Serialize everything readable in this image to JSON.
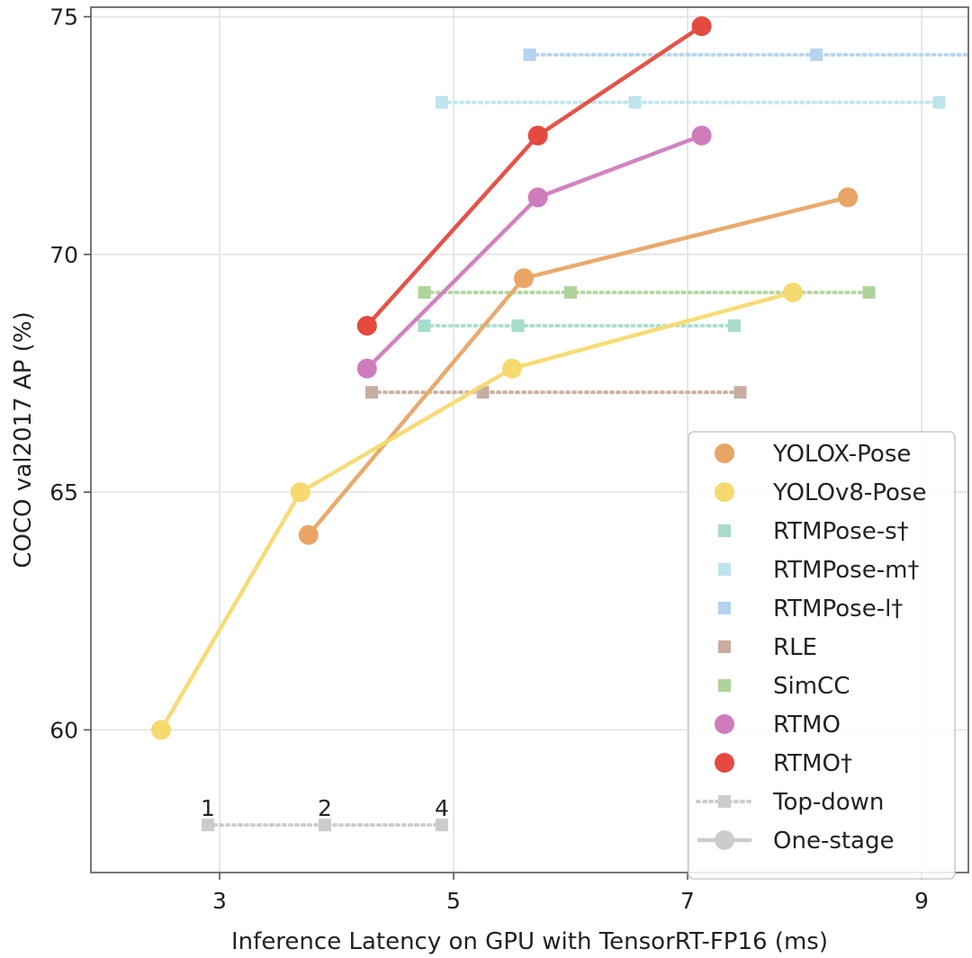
{
  "chart_data": {
    "type": "line",
    "title": "",
    "xlabel": "Inference Latency on GPU with TensorRT-FP16 (ms)",
    "ylabel": "COCO val2017 AP (%)",
    "xlim": [
      1.9,
      9.4
    ],
    "ylim": [
      57.0,
      75.2
    ],
    "xticks": [
      3,
      5,
      7,
      9
    ],
    "yticks": [
      60,
      65,
      70,
      75
    ],
    "grid": true,
    "legend_position": "lower-right",
    "series": [
      {
        "name": "YOLOX-Pose",
        "kind": "one-stage",
        "color": "#e8a565",
        "points": [
          [
            3.76,
            64.1
          ],
          [
            5.6,
            69.5
          ],
          [
            8.37,
            71.2
          ]
        ]
      },
      {
        "name": "YOLOv8-Pose",
        "kind": "one-stage",
        "color": "#f6da6f",
        "points": [
          [
            2.5,
            60.0
          ],
          [
            3.69,
            65.0
          ],
          [
            5.5,
            67.6
          ],
          [
            7.9,
            69.2
          ]
        ]
      },
      {
        "name": "RTMPose-s†",
        "kind": "top-down",
        "color": "#a8dccb",
        "points": [
          [
            4.75,
            68.5
          ],
          [
            5.55,
            68.5
          ],
          [
            7.4,
            68.5
          ]
        ]
      },
      {
        "name": "RTMPose-m†",
        "kind": "top-down",
        "color": "#bde5ec",
        "points": [
          [
            4.9,
            73.2
          ],
          [
            6.55,
            73.2
          ],
          [
            9.15,
            73.2
          ]
        ]
      },
      {
        "name": "RTMPose-l†",
        "kind": "top-down",
        "color": "#b5d3ef",
        "points": [
          [
            5.65,
            74.2
          ],
          [
            8.1,
            74.2
          ],
          [
            9.5,
            74.2
          ]
        ]
      },
      {
        "name": "RLE",
        "kind": "top-down",
        "color": "#c8ada0",
        "points": [
          [
            4.3,
            67.1
          ],
          [
            5.25,
            67.1
          ],
          [
            7.45,
            67.1
          ]
        ]
      },
      {
        "name": "SimCC",
        "kind": "top-down",
        "color": "#afd49a",
        "points": [
          [
            4.75,
            69.2
          ],
          [
            6.0,
            69.2
          ],
          [
            8.55,
            69.2
          ]
        ]
      },
      {
        "name": "RTMO",
        "kind": "one-stage",
        "color": "#cf7cbc",
        "points": [
          [
            4.26,
            67.6
          ],
          [
            5.72,
            71.2
          ],
          [
            7.12,
            72.5
          ]
        ]
      },
      {
        "name": "RTMO†",
        "kind": "one-stage",
        "color": "#e44a3f",
        "points": [
          [
            4.26,
            68.5
          ],
          [
            5.72,
            72.5
          ],
          [
            7.12,
            74.8
          ]
        ]
      }
    ],
    "annotations": [
      {
        "text": "1",
        "x": 2.9,
        "y": 58.0
      },
      {
        "text": "2",
        "x": 3.9,
        "y": 58.0
      },
      {
        "text": "4",
        "x": 4.9,
        "y": 58.0
      }
    ],
    "annotation_line": {
      "color": "#cccccc",
      "points": [
        [
          2.9,
          58.0
        ],
        [
          3.9,
          58.0
        ],
        [
          4.9,
          58.0
        ]
      ]
    },
    "legend": {
      "items": [
        "YOLOX-Pose",
        "YOLOv8-Pose",
        "RTMPose-s†",
        "RTMPose-m†",
        "RTMPose-l†",
        "RLE",
        "SimCC",
        "RTMO",
        "RTMO†"
      ],
      "style_items": [
        {
          "label": "Top-down",
          "kind": "top-down",
          "color": "#cccccc"
        },
        {
          "label": "One-stage",
          "kind": "one-stage",
          "color": "#cccccc"
        }
      ]
    }
  }
}
